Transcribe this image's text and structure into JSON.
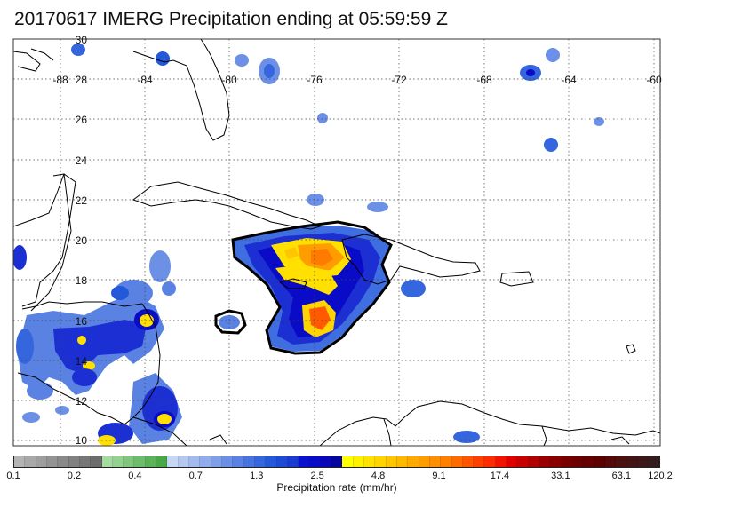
{
  "title": "20170617 IMERG Precipitation ending at 05:59:59 Z",
  "map": {
    "lon_ticks": [
      "-88",
      "-84",
      "-80",
      "-76",
      "-72",
      "-68",
      "-64",
      "-60"
    ],
    "lat_ticks": [
      "30",
      "28",
      "26",
      "24",
      "22",
      "20",
      "18",
      "16",
      "14",
      "12",
      "10"
    ],
    "lon_range": [
      -89.5,
      -60
    ],
    "lat_range": [
      9.5,
      30
    ],
    "gridlines": "dotted",
    "coastline_color": "#000000",
    "contour_color": "#000000"
  },
  "colorbar": {
    "label": "Precipitation rate (mm/hr)",
    "tick_labels": [
      "0.1",
      "0.2",
      "0.4",
      "0.7",
      "1.3",
      "2.5",
      "4.8",
      "9.1",
      "17.4",
      "33.1",
      "63.1",
      "120.2"
    ],
    "colors": [
      "#b3b3b3",
      "#a8a8a8",
      "#9e9e9e",
      "#939393",
      "#898989",
      "#808080",
      "#767676",
      "#6c6c6c",
      "#a6dba0",
      "#93d18e",
      "#80c77c",
      "#6dbc6a",
      "#5bb258",
      "#48a846",
      "#c8d6f5",
      "#b6c8f2",
      "#a3baef",
      "#91acec",
      "#7f9ee9",
      "#6c90e6",
      "#5a82e3",
      "#4774e0",
      "#3566dd",
      "#2358da",
      "#1f4ad6",
      "#1b3cd2",
      "#0a12d0",
      "#0a0bc6",
      "#0a06b8",
      "#08049e",
      "#ffff00",
      "#fff000",
      "#ffe200",
      "#ffd400",
      "#ffc600",
      "#ffb800",
      "#ffaa00",
      "#ff9c00",
      "#ff8e00",
      "#ff8000",
      "#ff6a00",
      "#ff5500",
      "#ff3f00",
      "#ff2a00",
      "#f21400",
      "#e00000",
      "#c80000",
      "#b00000",
      "#9a0000",
      "#8a0000",
      "#7a0000",
      "#6c0000",
      "#640000",
      "#5c0000",
      "#540a0a",
      "#4c1010",
      "#441414",
      "#3c1818",
      "#341c1c"
    ]
  },
  "precipitation_cells": [
    {
      "name": "haiti-jamaica-system",
      "peak": "orange",
      "threshold_contour": true
    },
    {
      "name": "jamaica-west-cell",
      "peak": "blue",
      "threshold_contour": true
    },
    {
      "name": "honduras-cluster",
      "peak": "yellow",
      "threshold_contour": false
    },
    {
      "name": "nicaragua-cluster",
      "peak": "yellow",
      "threshold_contour": false
    },
    {
      "name": "puerto-rico-east-cell",
      "peak": "blue",
      "threshold_contour": false
    }
  ]
}
